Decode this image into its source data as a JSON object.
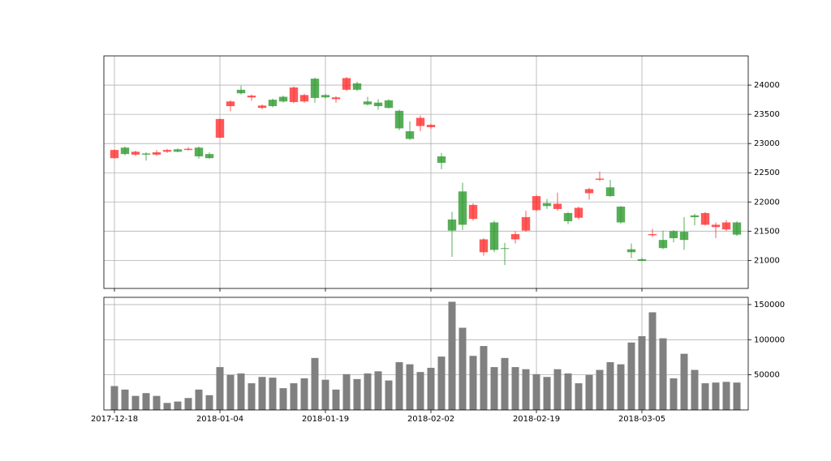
{
  "chart_data": [
    {
      "type": "candlestick",
      "open": [
        22890,
        22820,
        22860,
        22810,
        22850,
        22890,
        22860,
        22910,
        22780,
        22750,
        23420,
        23720,
        23860,
        23820,
        23650,
        23640,
        23720,
        23960,
        23830,
        23780,
        23790,
        23790,
        24120,
        23920,
        23670,
        23640,
        23610,
        23260,
        23080,
        23440,
        23320,
        22670,
        21510,
        21610,
        21950,
        21360,
        21180,
        21200,
        21450,
        21740,
        22100,
        21930,
        21970,
        21670,
        21900,
        22220,
        22400,
        22100,
        21650,
        21140,
        20990,
        21450,
        21210,
        21380,
        21350,
        21740,
        21810,
        21610,
        21650,
        21440
      ],
      "high": [
        22900,
        22950,
        22880,
        22850,
        22890,
        22910,
        22920,
        22940,
        22950,
        22850,
        23430,
        23740,
        23990,
        23840,
        23670,
        23770,
        23820,
        23980,
        23850,
        24130,
        23850,
        23810,
        24140,
        24060,
        23800,
        23760,
        23760,
        23580,
        23380,
        23480,
        23340,
        22840,
        21830,
        22330,
        21980,
        21380,
        21680,
        21300,
        21500,
        21850,
        22120,
        22050,
        22160,
        21830,
        21920,
        22240,
        22520,
        22380,
        21930,
        21290,
        21050,
        21540,
        21510,
        21520,
        21740,
        21800,
        21830,
        21650,
        21690,
        21670
      ],
      "low": [
        22740,
        22800,
        22790,
        22710,
        22790,
        22840,
        22850,
        22880,
        22740,
        22740,
        23090,
        23550,
        23840,
        23730,
        23590,
        23620,
        23700,
        23690,
        23700,
        23700,
        23770,
        23700,
        23900,
        23900,
        23650,
        23580,
        23600,
        23230,
        23060,
        23210,
        23250,
        22560,
        21060,
        21520,
        21680,
        21080,
        21140,
        20920,
        21290,
        21490,
        21840,
        21880,
        21850,
        21620,
        21700,
        22040,
        22360,
        22090,
        21630,
        21040,
        20990,
        21400,
        21190,
        21310,
        21180,
        21600,
        21600,
        21380,
        21500,
        21420
      ],
      "close": [
        22750,
        22930,
        22810,
        22830,
        22810,
        22860,
        22900,
        22890,
        22930,
        22820,
        23100,
        23640,
        23920,
        23790,
        23610,
        23750,
        23800,
        23710,
        23720,
        24110,
        23830,
        23760,
        23920,
        24030,
        23720,
        23700,
        23740,
        23560,
        23210,
        23300,
        23280,
        22780,
        21700,
        22180,
        21710,
        21140,
        21650,
        21210,
        21360,
        21510,
        21860,
        21980,
        21880,
        21810,
        21730,
        22150,
        22380,
        22250,
        21920,
        21190,
        21020,
        21430,
        21350,
        21500,
        21490,
        21770,
        21610,
        21570,
        21530,
        21650
      ],
      "up_color": "#2e9a2e",
      "down_color": "#ff3030",
      "ylim": [
        20520,
        24500
      ],
      "yticks": [
        21000,
        21500,
        22000,
        22500,
        23000,
        23500,
        24000
      ],
      "grid": true
    },
    {
      "type": "bar",
      "categories": [
        "2017-12-18",
        null,
        null,
        null,
        null,
        null,
        null,
        null,
        null,
        null,
        "2018-01-04",
        null,
        null,
        null,
        null,
        null,
        null,
        null,
        null,
        null,
        "2018-01-19",
        null,
        null,
        null,
        null,
        null,
        null,
        null,
        null,
        null,
        "2018-02-02",
        null,
        null,
        null,
        null,
        null,
        null,
        null,
        null,
        null,
        "2018-02-19",
        null,
        null,
        null,
        null,
        null,
        null,
        null,
        null,
        null,
        "2018-03-05",
        null,
        null,
        null,
        null,
        null,
        null,
        null,
        null,
        null
      ],
      "values": [
        34000,
        29000,
        20000,
        24000,
        20000,
        10000,
        12000,
        17000,
        29000,
        21000,
        61000,
        50000,
        52000,
        38000,
        47000,
        46000,
        31000,
        38000,
        45000,
        74000,
        43000,
        29000,
        51000,
        44000,
        52000,
        55000,
        42000,
        68000,
        65000,
        54000,
        60000,
        76000,
        154000,
        117000,
        77000,
        91000,
        61000,
        74000,
        61000,
        58000,
        51000,
        47000,
        58000,
        52000,
        38000,
        50000,
        57000,
        68000,
        65000,
        96000,
        105000,
        139000,
        102000,
        45000,
        80000,
        57000,
        38000,
        39000,
        40000,
        39000
      ],
      "color": "#808080",
      "ylim": [
        0,
        160300
      ],
      "yticks": [
        50000,
        100000,
        150000
      ],
      "grid": true
    }
  ]
}
